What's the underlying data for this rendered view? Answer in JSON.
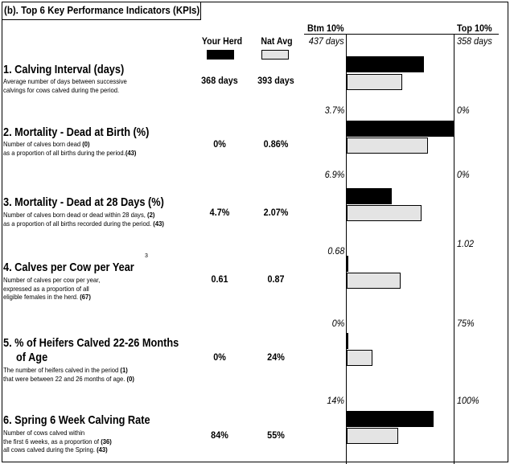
{
  "section_title": "(b). Top 6 Key Performance Indicators (KPIs)",
  "headers": {
    "your_herd": "Your Herd",
    "nat_avg": "Nat Avg"
  },
  "benchmarks": {
    "bottom_label": "Btm 10%",
    "top_label": "Top 10%"
  },
  "colors": {
    "your_herd": "#000000",
    "nat_avg": "#e4e4e4"
  },
  "kpis": [
    {
      "title": "1. Calving Interval (days)",
      "description": [
        "Average number of days between successive",
        "calvings for cows calved during the period."
      ],
      "your_herd": "368 days",
      "nat_avg": "393 days",
      "btm": "437 days",
      "top": "358 days",
      "herd_fraction": 0.72,
      "nat_fraction": 0.52
    },
    {
      "title": "2. Mortality - Dead at Birth (%)",
      "description_parts": [
        [
          "Number of calves born dead ",
          "(0)"
        ],
        [
          "as a proportion of all births during the period.",
          "(43)"
        ]
      ],
      "your_herd": "0%",
      "nat_avg": "0.86%",
      "btm": "3.7%",
      "top": "0%",
      "herd_fraction": 1.0,
      "nat_fraction": 0.76
    },
    {
      "title": "3. Mortality - Dead at 28 Days (%)",
      "description_parts": [
        [
          "Number of calves born dead or dead within 28 days, ",
          "(2)"
        ],
        [
          "as a proportion of all births recorded during the period. ",
          "(43)"
        ]
      ],
      "your_herd": "4.7%",
      "nat_avg": "2.07%",
      "btm": "6.9%",
      "top": "0%",
      "herd_fraction": 0.42,
      "nat_fraction": 0.7
    },
    {
      "title": "4. Calves per Cow per Year",
      "superscript": "3",
      "description_parts": [
        [
          "Number of calves per cow per year,",
          ""
        ],
        [
          "expressed as a proportion of all",
          ""
        ],
        [
          "eligible females in the herd. ",
          "(67)"
        ]
      ],
      "your_herd": "0.61",
      "nat_avg": "0.87",
      "btm": "0.68",
      "top": "1.02",
      "herd_fraction": 0.01,
      "nat_fraction": 0.5
    },
    {
      "title": "5. % of Heifers Calved 22-26 Months",
      "title_line2": "of Age",
      "description_parts": [
        [
          "The number of heifers calved in the period  ",
          "(1)"
        ],
        [
          "that were between 22 and 26 months of age.  ",
          "(0)"
        ]
      ],
      "your_herd": "0%",
      "nat_avg": "24%",
      "btm": "0%",
      "top": "75%",
      "herd_fraction": 0.0,
      "nat_fraction": 0.24
    },
    {
      "title": "6. Spring 6 Week Calving Rate",
      "description_parts": [
        [
          "Number of cows calved within",
          ""
        ],
        [
          "the first 6 weeks, as a proportion of  ",
          "(36)"
        ],
        [
          "all cows calved during the Spring.   ",
          "(43)"
        ]
      ],
      "your_herd": "84%",
      "nat_avg": "55%",
      "btm": "14%",
      "top": "100%",
      "herd_fraction": 0.81,
      "nat_fraction": 0.48
    }
  ]
}
